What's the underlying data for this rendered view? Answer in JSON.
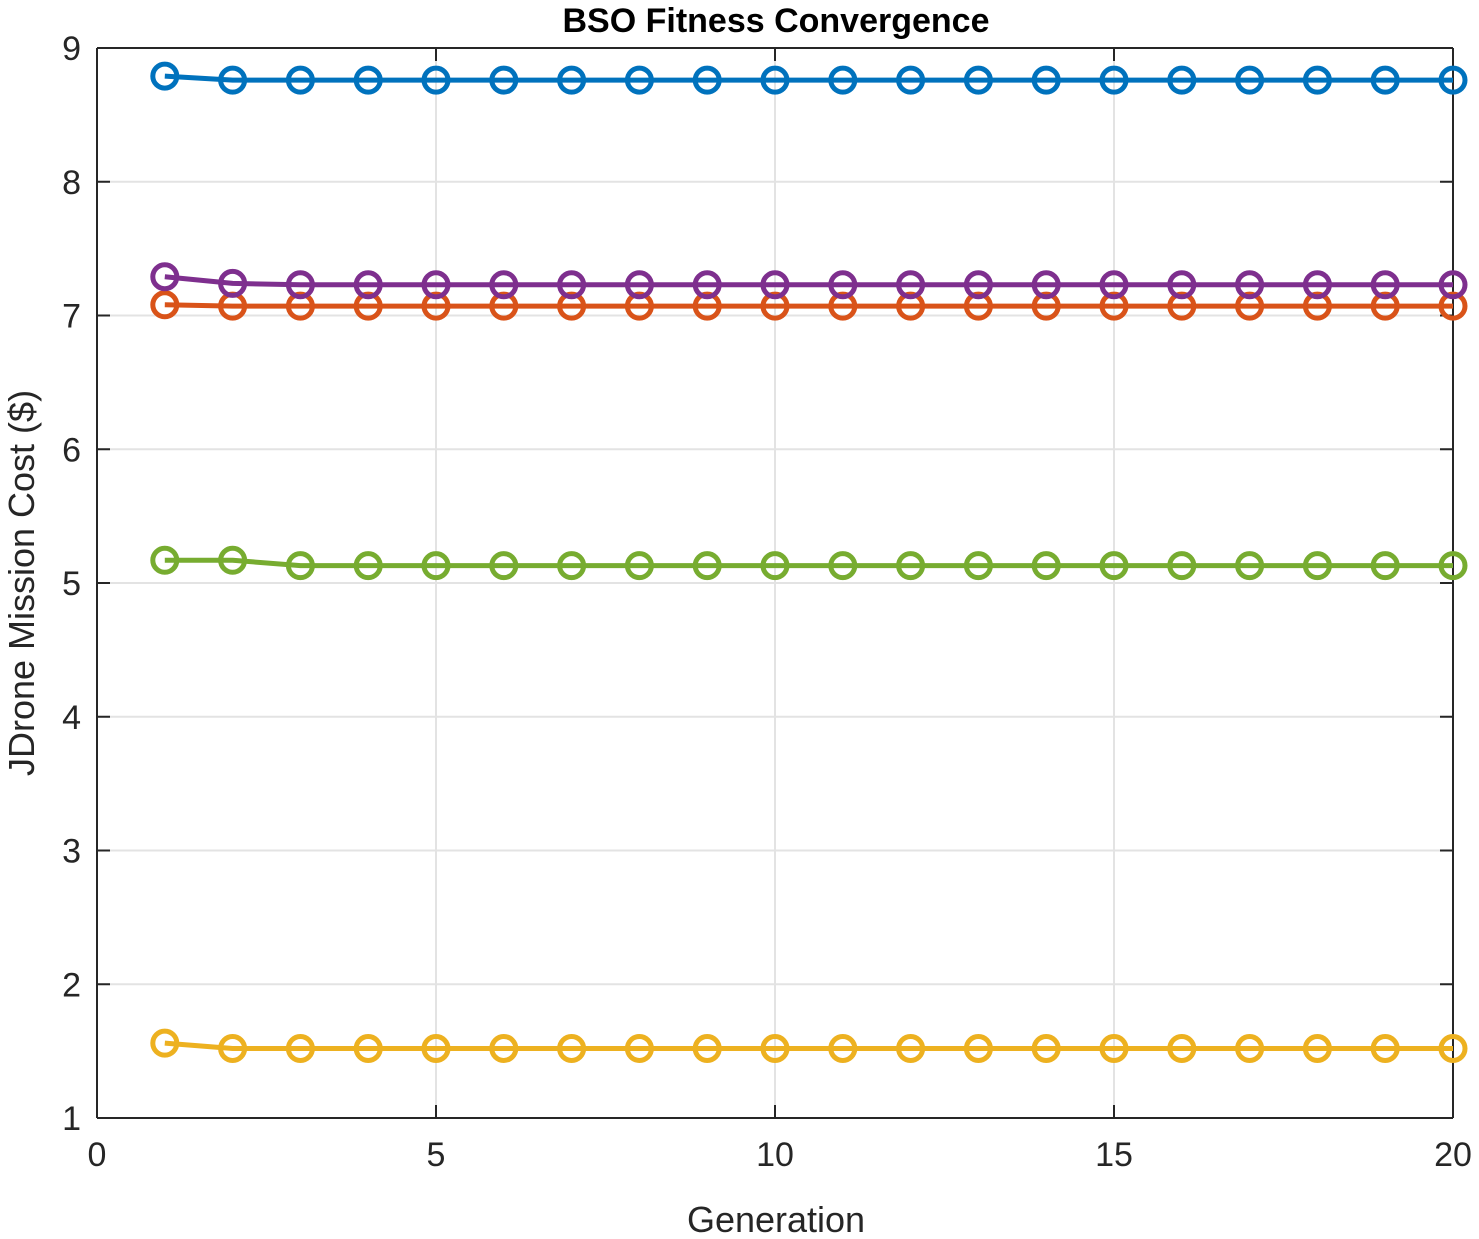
{
  "chart_data": {
    "type": "line",
    "title": "BSO Fitness Convergence",
    "xlabel": "Generation",
    "ylabel": "JDrone Mission Cost ($)",
    "xlim": [
      0,
      20
    ],
    "ylim": [
      1,
      9
    ],
    "xticks": [
      0,
      5,
      10,
      15,
      20
    ],
    "yticks": [
      1,
      2,
      3,
      4,
      5,
      6,
      7,
      8,
      9
    ],
    "grid": true,
    "marker": "circle",
    "x": [
      1,
      2,
      3,
      4,
      5,
      6,
      7,
      8,
      9,
      10,
      11,
      12,
      13,
      14,
      15,
      16,
      17,
      18,
      19,
      20
    ],
    "series": [
      {
        "color": "#0072bd",
        "values": [
          8.79,
          8.76,
          8.76,
          8.76,
          8.76,
          8.76,
          8.76,
          8.76,
          8.76,
          8.76,
          8.76,
          8.76,
          8.76,
          8.76,
          8.76,
          8.76,
          8.76,
          8.76,
          8.76,
          8.76
        ]
      },
      {
        "color": "#d95319",
        "values": [
          7.08,
          7.07,
          7.07,
          7.07,
          7.07,
          7.07,
          7.07,
          7.07,
          7.07,
          7.07,
          7.07,
          7.07,
          7.07,
          7.07,
          7.07,
          7.07,
          7.07,
          7.07,
          7.07,
          7.07
        ]
      },
      {
        "color": "#edb120",
        "values": [
          1.56,
          1.52,
          1.52,
          1.52,
          1.52,
          1.52,
          1.52,
          1.52,
          1.52,
          1.52,
          1.52,
          1.52,
          1.52,
          1.52,
          1.52,
          1.52,
          1.52,
          1.52,
          1.52,
          1.52
        ]
      },
      {
        "color": "#7e2f8e",
        "values": [
          7.29,
          7.24,
          7.23,
          7.23,
          7.23,
          7.23,
          7.23,
          7.23,
          7.23,
          7.23,
          7.23,
          7.23,
          7.23,
          7.23,
          7.23,
          7.23,
          7.23,
          7.23,
          7.23,
          7.23
        ]
      },
      {
        "color": "#77ac30",
        "values": [
          5.17,
          5.17,
          5.13,
          5.13,
          5.13,
          5.13,
          5.13,
          5.13,
          5.13,
          5.13,
          5.13,
          5.13,
          5.13,
          5.13,
          5.13,
          5.13,
          5.13,
          5.13,
          5.13,
          5.13
        ]
      }
    ]
  }
}
